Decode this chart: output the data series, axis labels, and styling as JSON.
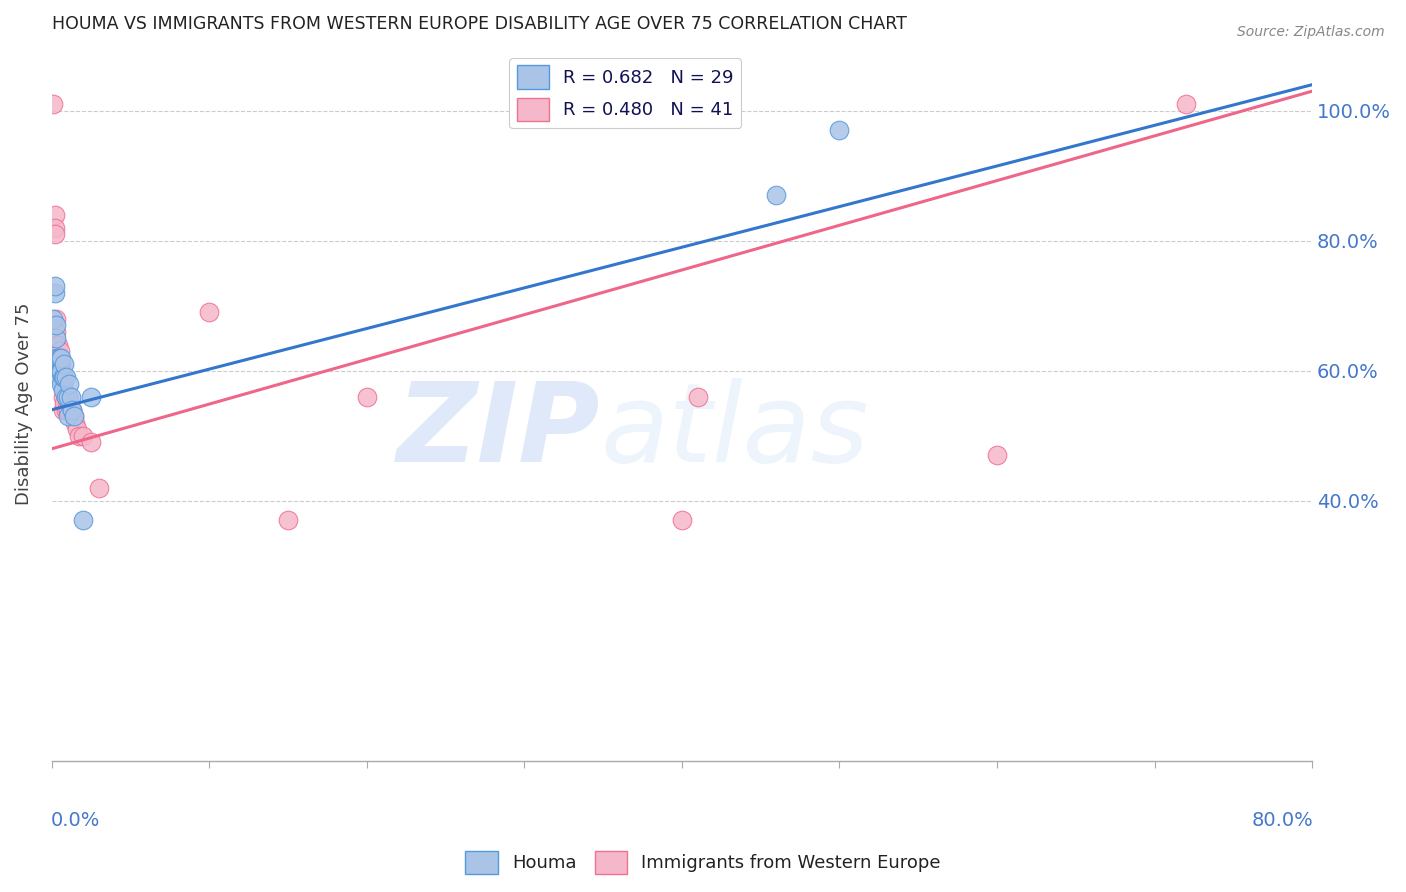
{
  "title": "HOUMA VS IMMIGRANTS FROM WESTERN EUROPE DISABILITY AGE OVER 75 CORRELATION CHART",
  "source": "Source: ZipAtlas.com",
  "ylabel": "Disability Age Over 75",
  "legend_houma": "R = 0.682   N = 29",
  "legend_immigrants": "R = 0.480   N = 41",
  "watermark_zip": "ZIP",
  "watermark_atlas": "atlas",
  "houma_color": "#aac4e8",
  "immigrants_color": "#f5b8cb",
  "houma_edge_color": "#5599dd",
  "immigrants_edge_color": "#f07090",
  "houma_line_color": "#3377cc",
  "immigrants_line_color": "#ee6688",
  "background_color": "#ffffff",
  "grid_color": "#cccccc",
  "title_color": "#222222",
  "axis_label_color": "#4477cc",
  "xlim": [
    0.0,
    0.8
  ],
  "ylim": [
    0.0,
    1.1
  ],
  "yticks": [
    0.4,
    0.6,
    0.8,
    1.0
  ],
  "ytick_labels": [
    "40.0%",
    "60.0%",
    "80.0%",
    "100.0%"
  ],
  "houma_x": [
    0.001,
    0.002,
    0.002,
    0.003,
    0.003,
    0.003,
    0.004,
    0.004,
    0.005,
    0.005,
    0.006,
    0.006,
    0.006,
    0.007,
    0.007,
    0.008,
    0.008,
    0.009,
    0.009,
    0.01,
    0.01,
    0.011,
    0.012,
    0.013,
    0.014,
    0.02,
    0.025,
    0.46,
    0.5
  ],
  "houma_y": [
    0.68,
    0.72,
    0.73,
    0.62,
    0.65,
    0.67,
    0.59,
    0.62,
    0.6,
    0.62,
    0.58,
    0.6,
    0.62,
    0.57,
    0.59,
    0.59,
    0.61,
    0.56,
    0.59,
    0.53,
    0.56,
    0.58,
    0.56,
    0.54,
    0.53,
    0.37,
    0.56,
    0.87,
    0.97
  ],
  "immigrants_x": [
    0.001,
    0.002,
    0.002,
    0.002,
    0.003,
    0.003,
    0.003,
    0.003,
    0.004,
    0.004,
    0.005,
    0.005,
    0.005,
    0.006,
    0.006,
    0.007,
    0.007,
    0.007,
    0.008,
    0.008,
    0.009,
    0.009,
    0.01,
    0.01,
    0.011,
    0.012,
    0.013,
    0.014,
    0.015,
    0.016,
    0.017,
    0.02,
    0.025,
    0.03,
    0.1,
    0.15,
    0.2,
    0.4,
    0.41,
    0.6,
    0.72
  ],
  "immigrants_y": [
    1.01,
    0.84,
    0.82,
    0.81,
    0.68,
    0.66,
    0.64,
    0.62,
    0.64,
    0.62,
    0.63,
    0.62,
    0.61,
    0.61,
    0.59,
    0.58,
    0.56,
    0.54,
    0.57,
    0.55,
    0.56,
    0.54,
    0.56,
    0.54,
    0.55,
    0.54,
    0.54,
    0.53,
    0.52,
    0.51,
    0.5,
    0.5,
    0.49,
    0.42,
    0.69,
    0.37,
    0.56,
    0.37,
    0.56,
    0.47,
    1.01
  ],
  "houma_line_x0": 0.0,
  "houma_line_y0": 0.54,
  "houma_line_x1": 0.8,
  "houma_line_y1": 1.04,
  "immigrants_line_x0": 0.0,
  "immigrants_line_y0": 0.48,
  "immigrants_line_x1": 0.8,
  "immigrants_line_y1": 1.03
}
